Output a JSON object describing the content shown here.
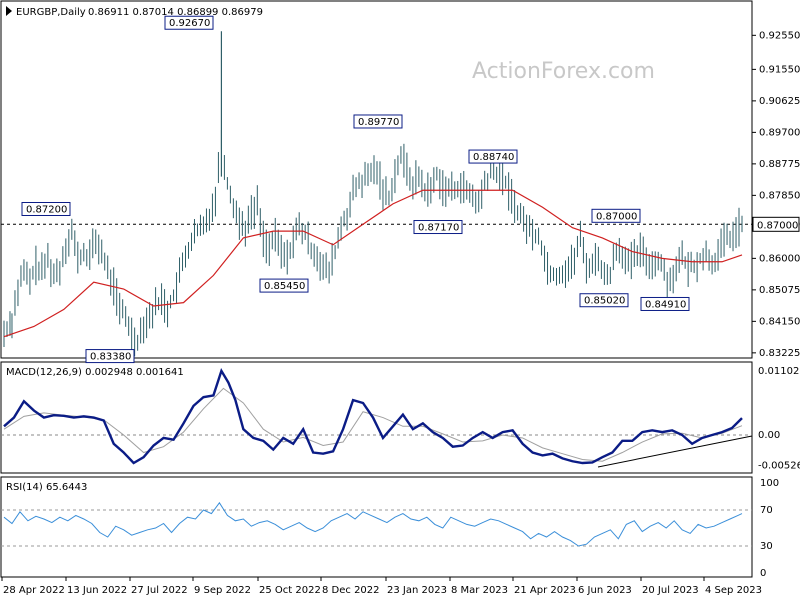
{
  "header": {
    "symbol": "EURGBP,Daily",
    "ohlc": "0.86911 0.87014 0.86899 0.86979"
  },
  "watermark": "ActionForex.com",
  "colors": {
    "bars": "#2f5f68",
    "ma": "#d02020",
    "macd": "#0b1c86",
    "signal": "#a0a0a0",
    "rsi": "#3b8fd9",
    "callout_border": "#0b1c86",
    "trendline": "#000000"
  },
  "chart_data": [
    {
      "type": "line",
      "title": "EURGBP,Daily",
      "subtitle": "0.86911 0.87014 0.86899 0.86979",
      "ylim": [
        0.8325,
        0.93
      ],
      "y_ticks": [
        "0.92550",
        "0.91550",
        "0.90625",
        "0.89700",
        "0.88775",
        "0.87850",
        "0.87000",
        "0.86000",
        "0.85075",
        "0.84150",
        "0.83225"
      ],
      "current_price": 0.87,
      "current_price_label": "0.87000",
      "series": [
        {
          "name": "",
          "x_index": [
            0,
            8,
            14,
            20,
            26,
            32,
            38,
            44,
            50,
            56,
            62,
            68,
            74,
            80,
            86,
            92,
            98,
            104,
            110,
            116,
            122,
            128,
            134,
            140,
            146,
            152,
            158,
            164,
            170,
            176,
            182,
            188,
            194,
            200,
            206,
            212,
            218,
            224,
            230,
            236,
            242,
            248,
            254,
            260,
            266,
            272,
            278,
            284,
            290,
            296,
            302,
            308,
            314,
            320,
            326,
            332,
            338,
            344,
            350,
            356,
            362,
            368,
            374,
            380,
            386,
            392,
            398,
            404,
            410,
            416,
            422,
            428,
            434,
            440,
            446,
            452,
            458,
            464,
            470,
            476,
            482,
            488,
            494,
            500,
            506,
            512,
            518,
            524,
            530,
            536,
            542,
            548,
            554,
            560,
            566,
            572,
            578,
            584,
            590,
            596,
            602,
            608,
            614,
            620,
            626,
            632,
            638,
            644,
            650,
            656,
            662,
            668,
            674,
            680,
            686,
            692,
            698,
            704,
            710,
            716,
            722,
            728,
            734,
            740
          ],
          "values": [
            0.838,
            0.842,
            0.851,
            0.856,
            0.853,
            0.858,
            0.856,
            0.86,
            0.855,
            0.857,
            0.864,
            0.868,
            0.86,
            0.861,
            0.861,
            0.865,
            0.862,
            0.856,
            0.852,
            0.845,
            0.843,
            0.838,
            0.836,
            0.841,
            0.843,
            0.846,
            0.848,
            0.845,
            0.849,
            0.855,
            0.861,
            0.865,
            0.868,
            0.869,
            0.873,
            0.878,
            0.895,
            0.882,
            0.876,
            0.871,
            0.869,
            0.873,
            0.876,
            0.866,
            0.863,
            0.866,
            0.862,
            0.86,
            0.866,
            0.869,
            0.867,
            0.863,
            0.861,
            0.857,
            0.856,
            0.862,
            0.869,
            0.873,
            0.879,
            0.882,
            0.883,
            0.885,
            0.886,
            0.88,
            0.878,
            0.885,
            0.89,
            0.886,
            0.882,
            0.884,
            0.88,
            0.88,
            0.885,
            0.881,
            0.88,
            0.88,
            0.882,
            0.879,
            0.878,
            0.876,
            0.882,
            0.885,
            0.885,
            0.884,
            0.88,
            0.876,
            0.872,
            0.87,
            0.867,
            0.867,
            0.86,
            0.856,
            0.855,
            0.856,
            0.857,
            0.86,
            0.866,
            0.858,
            0.858,
            0.861,
            0.854,
            0.856,
            0.863,
            0.862,
            0.858,
            0.86,
            0.862,
            0.86,
            0.858,
            0.86,
            0.856,
            0.853,
            0.858,
            0.86,
            0.857,
            0.858,
            0.86,
            0.861,
            0.859,
            0.861,
            0.865,
            0.866,
            0.868,
            0.87
          ]
        },
        {
          "name": "",
          "x_index": [
            0,
            30,
            60,
            90,
            120,
            150,
            180,
            210,
            240,
            270,
            300,
            330,
            360,
            390,
            420,
            450,
            480,
            510,
            540,
            570,
            600,
            630,
            660,
            690,
            720,
            740
          ],
          "values": [
            0.837,
            0.84,
            0.845,
            0.853,
            0.851,
            0.846,
            0.847,
            0.855,
            0.866,
            0.868,
            0.868,
            0.864,
            0.87,
            0.876,
            0.88,
            0.88,
            0.88,
            0.88,
            0.875,
            0.869,
            0.866,
            0.862,
            0.86,
            0.859,
            0.859,
            0.861
          ]
        }
      ],
      "annotations": [
        {
          "text": "0.92670",
          "value": 0.9267
        },
        {
          "text": "0.89770",
          "value": 0.8977
        },
        {
          "text": "0.88740",
          "value": 0.8874
        },
        {
          "text": "0.87200",
          "value": 0.872
        },
        {
          "text": "0.87170",
          "value": 0.8717
        },
        {
          "text": "0.87000",
          "value": 0.87
        },
        {
          "text": "0.85450",
          "value": 0.8545
        },
        {
          "text": "0.85020",
          "value": 0.8502
        },
        {
          "text": "0.84910",
          "value": 0.8491
        },
        {
          "text": "0.83380",
          "value": 0.8338
        }
      ],
      "x_tick_labels": [
        "28 Apr 2022",
        "13 Jun 2022",
        "27 Jul 2022",
        "9 Sep 2022",
        "25 Oct 2022",
        "8 Dec 2022",
        "23 Jan 2023",
        "8 Mar 2023",
        "21 Apr 2023",
        "6 Jun 2023",
        "20 Jul 2023",
        "4 Sep 2023"
      ]
    },
    {
      "type": "line",
      "title": "MACD(12,26,9) 0.002948 0.001641",
      "ylim": [
        -0.006,
        0.0115
      ],
      "y_ticks": [
        "0.011027",
        "0.00",
        "-0.005267"
      ],
      "series": [
        {
          "name": "",
          "x_index": [
            0,
            10,
            20,
            30,
            40,
            50,
            60,
            70,
            80,
            90,
            100,
            110,
            120,
            130,
            140,
            150,
            160,
            170,
            180,
            190,
            200,
            210,
            218,
            225,
            232,
            240,
            250,
            260,
            270,
            280,
            290,
            300,
            310,
            320,
            330,
            340,
            350,
            360,
            370,
            380,
            390,
            400,
            410,
            420,
            430,
            440,
            450,
            460,
            470,
            480,
            490,
            500,
            510,
            520,
            530,
            540,
            550,
            560,
            570,
            580,
            590,
            600,
            610,
            620,
            630,
            640,
            650,
            660,
            670,
            680,
            690,
            700,
            710,
            720,
            730,
            740
          ],
          "values": [
            0.0015,
            0.003,
            0.0058,
            0.0042,
            0.003,
            0.0034,
            0.0033,
            0.003,
            0.0032,
            0.003,
            0.0025,
            -0.0015,
            -0.003,
            -0.0048,
            -0.0038,
            -0.0018,
            -0.0005,
            -0.0008,
            0.002,
            0.005,
            0.0065,
            0.0068,
            0.011,
            0.009,
            0.006,
            0.001,
            -0.0005,
            -0.001,
            -0.0025,
            -0.0005,
            -0.0015,
            0.001,
            -0.003,
            -0.0032,
            -0.0028,
            0.001,
            0.006,
            0.0055,
            0.003,
            -0.0005,
            0.0015,
            0.0035,
            0.001,
            0.002,
            0.0005,
            -0.0005,
            -0.002,
            -0.0018,
            -0.0005,
            0.0005,
            -0.0005,
            0.0005,
            0.0008,
            -0.0015,
            -0.003,
            -0.0035,
            -0.0032,
            -0.004,
            -0.0045,
            -0.0048,
            -0.0047,
            -0.0038,
            -0.003,
            -0.001,
            -0.001,
            0.0005,
            0.0008,
            0.0005,
            0.0008,
            0.0,
            -0.0015,
            -0.0005,
            0.0,
            0.0005,
            0.0012,
            0.0029
          ]
        },
        {
          "name": "",
          "x_index": [
            0,
            20,
            40,
            60,
            80,
            100,
            120,
            140,
            160,
            180,
            200,
            220,
            240,
            260,
            280,
            300,
            320,
            340,
            360,
            380,
            400,
            420,
            440,
            460,
            480,
            500,
            520,
            540,
            560,
            580,
            600,
            620,
            640,
            660,
            680,
            700,
            720,
            740
          ],
          "values": [
            0.001,
            0.0032,
            0.0038,
            0.0034,
            0.0031,
            0.0026,
            0.0,
            -0.003,
            -0.002,
            0.0005,
            0.0045,
            0.008,
            0.0055,
            0.001,
            -0.0012,
            -0.0004,
            -0.0018,
            -0.0012,
            0.004,
            0.003,
            0.0015,
            0.0015,
            0.0002,
            -0.0012,
            -0.001,
            0.0,
            -0.0005,
            -0.0022,
            -0.0032,
            -0.0042,
            -0.0045,
            -0.003,
            -0.0012,
            0.0002,
            0.0003,
            -0.0005,
            0.0003,
            0.0016
          ]
        }
      ]
    },
    {
      "type": "line",
      "title": "RSI(14) 65.6443",
      "ylim": [
        0,
        100
      ],
      "y_ticks": [
        "100",
        "70",
        "30",
        "0"
      ],
      "series": [
        {
          "name": "",
          "x_index": [
            0,
            8,
            16,
            24,
            32,
            40,
            48,
            56,
            64,
            72,
            80,
            88,
            96,
            104,
            112,
            120,
            128,
            136,
            144,
            152,
            160,
            168,
            176,
            184,
            192,
            200,
            208,
            216,
            224,
            232,
            240,
            248,
            256,
            264,
            272,
            280,
            288,
            296,
            304,
            312,
            320,
            328,
            336,
            344,
            352,
            360,
            368,
            376,
            384,
            392,
            400,
            408,
            416,
            424,
            432,
            440,
            448,
            456,
            464,
            472,
            480,
            488,
            496,
            504,
            512,
            520,
            528,
            536,
            544,
            552,
            560,
            568,
            576,
            584,
            592,
            600,
            608,
            616,
            624,
            632,
            640,
            648,
            656,
            664,
            672,
            680,
            688,
            696,
            704,
            712,
            720,
            728,
            736,
            740
          ],
          "values": [
            62,
            55,
            68,
            58,
            63,
            60,
            56,
            62,
            58,
            64,
            60,
            55,
            45,
            40,
            52,
            48,
            42,
            45,
            48,
            50,
            55,
            45,
            55,
            62,
            60,
            70,
            66,
            78,
            64,
            58,
            60,
            52,
            56,
            58,
            54,
            48,
            52,
            56,
            50,
            46,
            50,
            58,
            62,
            66,
            60,
            68,
            64,
            60,
            56,
            62,
            66,
            60,
            58,
            62,
            54,
            50,
            62,
            58,
            54,
            52,
            56,
            60,
            58,
            54,
            50,
            46,
            38,
            44,
            40,
            46,
            40,
            36,
            30,
            32,
            40,
            44,
            48,
            38,
            54,
            58,
            46,
            52,
            56,
            50,
            58,
            48,
            44,
            54,
            50,
            52,
            56,
            60,
            64,
            66
          ]
        }
      ]
    }
  ]
}
